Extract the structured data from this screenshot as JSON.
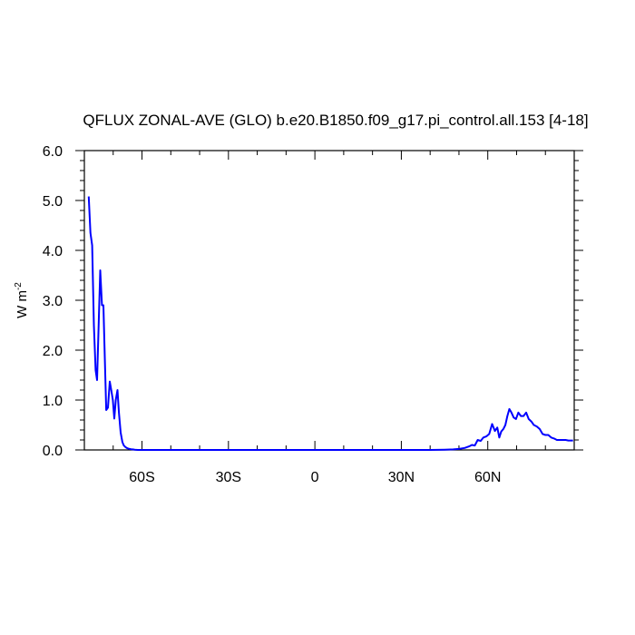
{
  "chart_data": {
    "type": "line",
    "title": "QFLUX ZONAL-AVE (GLO) b.e20.B1850.f09_g17.pi_control.all.153 [4-18]",
    "ylabel": "W m",
    "ylabel_superscript": "-2",
    "xlim": [
      -80,
      90
    ],
    "ylim": [
      0,
      6
    ],
    "x_ticks": [
      -60,
      -30,
      0,
      30,
      60
    ],
    "x_tick_labels": [
      "60S",
      "30S",
      "0",
      "30N",
      "60N"
    ],
    "y_ticks": [
      0,
      1,
      2,
      3,
      4,
      5,
      6
    ],
    "y_tick_labels": [
      "0.0",
      "1.0",
      "2.0",
      "3.0",
      "4.0",
      "5.0",
      "6.0"
    ],
    "grid": false,
    "series": [
      {
        "color": "#0000ff",
        "x": [
          -78.5,
          -77.9,
          -77.3,
          -76.7,
          -76.1,
          -75.6,
          -75.0,
          -74.5,
          -73.9,
          -73.4,
          -72.9,
          -72.4,
          -71.8,
          -71.2,
          -70.6,
          -70.1,
          -69.6,
          -69.1,
          -68.5,
          -68.0,
          -67.4,
          -66.8,
          -66.3,
          -65.8,
          -65.3,
          -64.8,
          -64.3,
          -63.8,
          -63.2,
          -62.5,
          -61.5,
          -60.0,
          -57.0,
          -50.0,
          -40.0,
          -30.0,
          -20.0,
          -10.0,
          0.0,
          10.0,
          20.0,
          30.0,
          40.0,
          45.0,
          48.0,
          50.0,
          52.0,
          53.5,
          54.5,
          55.5,
          56.5,
          57.5,
          58.5,
          59.5,
          60.5,
          61.5,
          62.5,
          63.3,
          64.0,
          64.7,
          65.4,
          66.1,
          66.8,
          67.5,
          68.2,
          69.0,
          69.8,
          70.6,
          71.5,
          72.4,
          73.3,
          74.2,
          75.1,
          76.0,
          77.0,
          78.0,
          79.0,
          80.0,
          81.0,
          82.0,
          83.0,
          84.0,
          85.0,
          86.0,
          87.0,
          88.0,
          89.0,
          89.6
        ],
        "y": [
          5.08,
          4.35,
          4.1,
          2.5,
          1.6,
          1.4,
          2.6,
          3.6,
          2.9,
          2.9,
          1.8,
          0.8,
          0.85,
          1.37,
          1.17,
          1.0,
          0.63,
          1.0,
          1.2,
          0.75,
          0.35,
          0.16,
          0.09,
          0.06,
          0.04,
          0.03,
          0.02,
          0.015,
          0.01,
          0.005,
          0.0,
          0.0,
          0.0,
          0.0,
          0.0,
          0.0,
          0.0,
          0.0,
          0.0,
          0.0,
          0.0,
          0.0,
          0.0,
          0.005,
          0.01,
          0.02,
          0.04,
          0.07,
          0.1,
          0.09,
          0.2,
          0.18,
          0.25,
          0.27,
          0.32,
          0.52,
          0.38,
          0.45,
          0.25,
          0.37,
          0.42,
          0.5,
          0.68,
          0.82,
          0.75,
          0.65,
          0.62,
          0.75,
          0.68,
          0.68,
          0.75,
          0.62,
          0.57,
          0.5,
          0.47,
          0.42,
          0.32,
          0.3,
          0.3,
          0.25,
          0.23,
          0.2,
          0.2,
          0.2,
          0.2,
          0.19,
          0.19,
          0.19
        ]
      }
    ]
  }
}
